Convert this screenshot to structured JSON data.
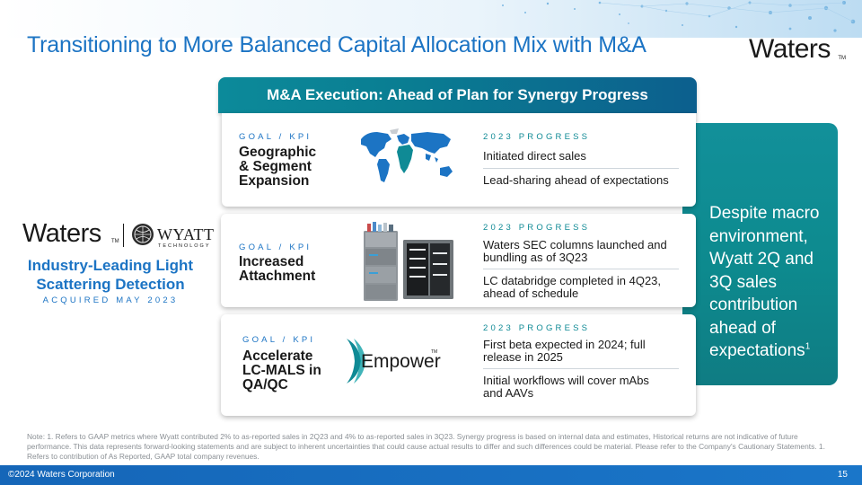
{
  "title": "Transitioning to More Balanced Capital Allocation Mix with M&A",
  "brand": {
    "logo_word": "Waters",
    "logo_tm": "TM",
    "accent": "#1c74c4",
    "teal": "#0f8a95"
  },
  "banner": {
    "text": "M&A Execution: Ahead of Plan for Synergy Progress"
  },
  "left": {
    "waters_word": "Waters",
    "waters_tm": "TM",
    "wyatt_word": "WYATT",
    "wyatt_sub": "TECHNOLOGY",
    "headline_line1": "Industry-Leading Light",
    "headline_line2": "Scattering Detection",
    "acquired": "ACQUIRED MAY 2023"
  },
  "cards": [
    {
      "kpi_label": "GOAL / KPI",
      "kpi_title_lines": [
        "Geographic",
        "& Segment",
        "Expansion"
      ],
      "progress_label": "2023 PROGRESS",
      "items": [
        "Initiated direct sales",
        "Lead-sharing ahead of expectations"
      ],
      "graphic": "world-map-icon"
    },
    {
      "kpi_label": "GOAL / KPI",
      "kpi_title_lines": [
        "Increased",
        "Attachment"
      ],
      "progress_label": "2023 PROGRESS",
      "items": [
        "Waters SEC columns launched and bundling as of 3Q23",
        "LC databridge completed in 4Q23, ahead of schedule"
      ],
      "graphic": "lc-instrument-image"
    },
    {
      "kpi_label": "GOAL / KPI",
      "kpi_title_lines": [
        "Accelerate",
        "LC-MALS in",
        "QA/QC"
      ],
      "progress_label": "2023 PROGRESS",
      "items": [
        "First beta expected in 2024; full release in 2025",
        "Initial workflows will cover mAbs and AAVs"
      ],
      "graphic": "empower-logo",
      "empower_word": "Empower",
      "empower_tm": "TM"
    }
  ],
  "side": {
    "text": "Despite macro environment, Wyatt 2Q and 3Q sales contribution ahead of expectations",
    "footnote": "1"
  },
  "note": "Note: 1. Refers to GAAP metrics where Wyatt contributed 2% to as-reported sales in 2Q23 and 4% to as-reported sales in 3Q23. Synergy progress is based on internal data and estimates, Historical returns are not indicative of future performance. This data represents forward-looking statements and are subject to inherent uncertainties that could cause actual results to differ and such differences could be material. Please refer to the Company's Cautionary Statements. 1. Refers to contribution of As Reported, GAAP total company revenues.",
  "footer": {
    "copyright": "©2024 Waters Corporation",
    "page": "15"
  }
}
